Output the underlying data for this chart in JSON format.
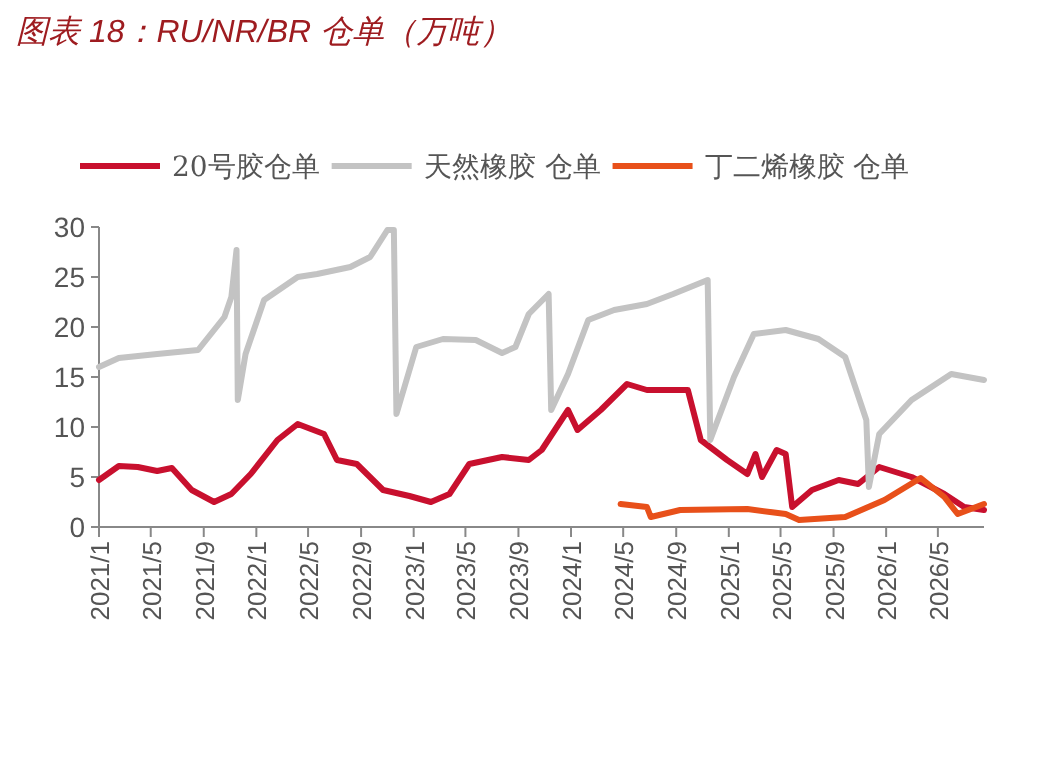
{
  "chart_data": {
    "type": "line",
    "title": "图表 18：RU/NR/BR 仓单（万吨）",
    "xlim": [
      "2021-01-01",
      "2026-08-16"
    ],
    "xticks": [
      {
        "value": "2021-01-01",
        "label": "2021/1"
      },
      {
        "value": "2021-05-01",
        "label": "2021/5"
      },
      {
        "value": "2021-09-01",
        "label": "2021/9"
      },
      {
        "value": "2022-01-01",
        "label": "2022/1"
      },
      {
        "value": "2022-05-01",
        "label": "2022/5"
      },
      {
        "value": "2022-09-01",
        "label": "2022/9"
      },
      {
        "value": "2023-01-01",
        "label": "2023/1"
      },
      {
        "value": "2023-05-01",
        "label": "2023/5"
      },
      {
        "value": "2023-09-01",
        "label": "2023/9"
      },
      {
        "value": "2024-01-01",
        "label": "2024/1"
      },
      {
        "value": "2024-05-01",
        "label": "2024/5"
      },
      {
        "value": "2024-09-01",
        "label": "2024/9"
      },
      {
        "value": "2025-01-01",
        "label": "2025/1"
      },
      {
        "value": "2025-05-01",
        "label": "2025/5"
      },
      {
        "value": "2025-09-01",
        "label": "2025/9"
      },
      {
        "value": "2026-01-01",
        "label": "2026/1"
      },
      {
        "value": "2026-05-01",
        "label": "2026/5"
      }
    ],
    "ylim": [
      0,
      30
    ],
    "yticks": [
      0,
      5,
      10,
      15,
      20,
      25,
      30
    ],
    "legend": "top",
    "line_style": "solid",
    "marker": "none",
    "series": [
      {
        "name": "20号胶仓单",
        "color": "#c8102e",
        "x": [
          "2021-01-01",
          "2021-02-16",
          "2021-04-01",
          "2021-05-16",
          "2021-06-19",
          "2021-08-04",
          "2021-09-25",
          "2021-11-04",
          "2021-12-19",
          "2022-02-19",
          "2022-04-07",
          "2022-06-07",
          "2022-07-07",
          "2022-08-22",
          "2022-10-22",
          "2022-12-22",
          "2023-02-10",
          "2023-03-25",
          "2023-05-10",
          "2023-07-25",
          "2023-09-25",
          "2023-10-25",
          "2023-12-25",
          "2024-01-16",
          "2024-03-10",
          "2024-05-10",
          "2024-06-25",
          "2024-09-28",
          "2024-10-28",
          "2024-12-28",
          "2025-02-13",
          "2025-03-04",
          "2025-03-19",
          "2025-04-22",
          "2025-05-13",
          "2025-05-28",
          "2025-07-13",
          "2025-09-13",
          "2025-10-28",
          "2025-12-16",
          "2026-03-01",
          "2026-05-16",
          "2026-07-01",
          "2026-08-16"
        ],
        "values": [
          4.7,
          6.1,
          6,
          5.6,
          5.9,
          3.7,
          2.5,
          3.3,
          5.3,
          8.7,
          10.3,
          9.3,
          6.7,
          6.3,
          3.7,
          3.1,
          2.5,
          3.3,
          6.3,
          7,
          6.7,
          7.7,
          11.7,
          9.7,
          11.7,
          14.3,
          13.7,
          13.7,
          8.7,
          6.7,
          5.3,
          7.3,
          5,
          7.7,
          7.3,
          2,
          3.7,
          4.7,
          4.3,
          6,
          5,
          3.3,
          2,
          1.7
        ]
      },
      {
        "name": "天然橡胶 仓单",
        "color": "#c3c3c3",
        "x": [
          "2021-01-01",
          "2021-02-16",
          "2021-05-16",
          "2021-08-19",
          "2021-10-19",
          "2021-11-04",
          "2021-11-16",
          "2021-11-19",
          "2021-12-07",
          "2022-01-19",
          "2022-04-07",
          "2022-05-22",
          "2022-08-07",
          "2022-09-22",
          "2022-11-01",
          "2022-11-16",
          "2022-11-22",
          "2023-01-07",
          "2023-03-10",
          "2023-05-25",
          "2023-07-25",
          "2023-08-25",
          "2023-09-25",
          "2023-11-10",
          "2023-11-16",
          "2023-12-25",
          "2024-02-10",
          "2024-04-10",
          "2024-06-25",
          "2024-08-25",
          "2024-11-13",
          "2024-11-19",
          "2025-01-13",
          "2025-02-28",
          "2025-05-13",
          "2025-07-28",
          "2025-09-28",
          "2025-11-16",
          "2025-11-22",
          "2025-12-16",
          "2026-03-01",
          "2026-06-01",
          "2026-08-16"
        ],
        "values": [
          16,
          16.9,
          17.3,
          17.7,
          21,
          23,
          27.7,
          12.7,
          17.3,
          22.7,
          25,
          25.3,
          26,
          27,
          29.7,
          29.7,
          11.3,
          18,
          18.8,
          18.7,
          17.4,
          18,
          21.3,
          23.3,
          11.7,
          15.3,
          20.7,
          21.7,
          22.3,
          23.3,
          24.7,
          8.7,
          15,
          19.3,
          19.7,
          18.8,
          17,
          10.7,
          4,
          9.3,
          12.7,
          15.3,
          14.7
        ]
      },
      {
        "name": "丁二烯橡胶 仓单",
        "color": "#e8501a",
        "x": [
          "2024-04-25",
          "2024-06-25",
          "2024-07-04",
          "2024-09-10",
          "2025-02-13",
          "2025-05-13",
          "2025-06-13",
          "2025-09-28",
          "2025-12-28",
          "2026-03-22",
          "2026-05-16",
          "2026-06-16",
          "2026-08-16"
        ],
        "values": [
          2.3,
          2,
          1,
          1.7,
          1.8,
          1.3,
          0.7,
          1,
          2.7,
          4.9,
          3,
          1.3,
          2.3
        ]
      }
    ]
  }
}
